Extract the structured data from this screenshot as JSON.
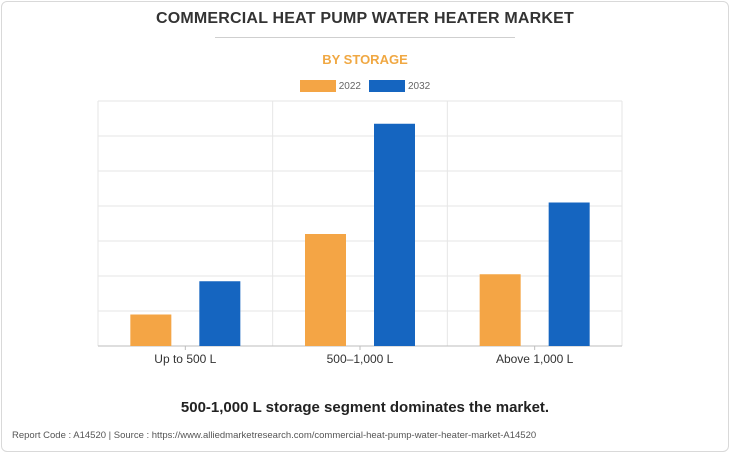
{
  "title": "COMMERCIAL HEAT PUMP WATER HEATER MARKET",
  "subtitle": "BY STORAGE",
  "headline": "500-1,000 L storage segment dominates the market.",
  "footer": "Report Code : A14520  |  Source : https://www.alliedmarketresearch.com/commercial-heat-pump-water-heater-market-A14520",
  "colors": {
    "series_2022": "#f4a545",
    "series_2032": "#1565c0"
  },
  "chart_data": {
    "type": "bar",
    "title": "",
    "xlabel": "",
    "ylabel": "",
    "categories": [
      "Up to 500 L",
      "500–1,000 L",
      "Above 1,000 L"
    ],
    "series": [
      {
        "name": "2022",
        "values": [
          9,
          32,
          20.5
        ]
      },
      {
        "name": "2032",
        "values": [
          18.5,
          63.5,
          41
        ]
      }
    ],
    "ylim": [
      0,
      70
    ],
    "gridlines": [
      10,
      20,
      30,
      40,
      50,
      60,
      70
    ],
    "grid": true,
    "legend_position": "top-center"
  }
}
